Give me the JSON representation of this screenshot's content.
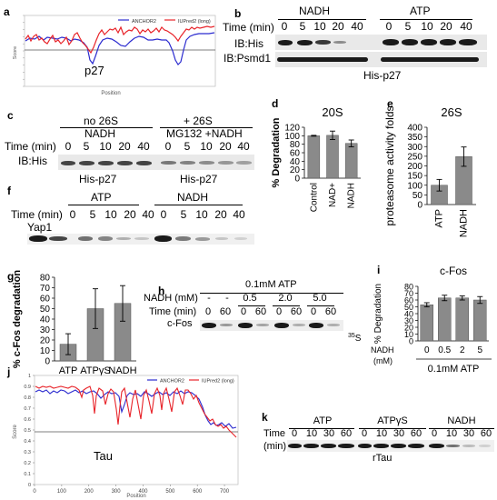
{
  "panels": {
    "a": {
      "label": "a",
      "legend": [
        "ANCHOR2",
        "IUPred2 (long)"
      ],
      "legend_colors": [
        "#2b2bcf",
        "#e8242a"
      ],
      "protein": "p27",
      "xlabel": "Position",
      "ylabel": "Score"
    },
    "b": {
      "label": "b",
      "group1": "NADH",
      "group2": "ATP",
      "time_label": "Time (min)",
      "times": [
        "0",
        "5",
        "10",
        "20",
        "40"
      ],
      "row1": "IB:His",
      "row2": "IB:Psmd1",
      "caption": "His-p27"
    },
    "c": {
      "label": "c",
      "group1_title": "no 26S",
      "group1_sub": "NADH",
      "group2_title": "+ 26S",
      "group2_sub": "MG132 +NADH",
      "time_label": "Time (min)",
      "times": [
        "0",
        "5",
        "10",
        "20",
        "40"
      ],
      "row": "IB:His",
      "caption1": "His-p27",
      "caption2": "His-p27"
    },
    "d": {
      "label": "d",
      "chart_data": {
        "type": "bar",
        "title": "20S",
        "ylabel": "% Degradation",
        "categories": [
          "Control",
          "NAD+",
          "NADH"
        ],
        "values": [
          100,
          101,
          82
        ],
        "errors": [
          1,
          10,
          8
        ],
        "ylim": [
          0,
          120
        ],
        "yticks": [
          0,
          20,
          40,
          60,
          80,
          100,
          120
        ]
      }
    },
    "e": {
      "label": "e",
      "chart_data": {
        "type": "bar",
        "title": "26S",
        "ylabel": "proteasome activity folds",
        "categories": [
          "ATP",
          "NADH"
        ],
        "values": [
          100,
          248
        ],
        "errors": [
          30,
          50
        ],
        "ylim": [
          0,
          400
        ],
        "yticks": [
          0,
          50,
          100,
          150,
          200,
          250,
          300,
          350,
          400
        ]
      }
    },
    "f": {
      "label": "f",
      "group1": "ATP",
      "group2": "NADH",
      "time_label": "Time (min)",
      "times": [
        "0",
        "5",
        "10",
        "20",
        "40"
      ],
      "row": "Yap1"
    },
    "g": {
      "label": "g",
      "chart_data": {
        "type": "bar",
        "ylabel": "% c-Fos degradation",
        "categories": [
          "ATP",
          "ATPγS",
          "NADH"
        ],
        "values": [
          16,
          50,
          55
        ],
        "errors": [
          10,
          19,
          17
        ],
        "ylim": [
          0,
          80
        ],
        "yticks": [
          0,
          10,
          20,
          30,
          40,
          50,
          60,
          70,
          80
        ]
      }
    },
    "h": {
      "label": "h",
      "atp": "0.1mM ATP",
      "nadh_label": "NADH (mM)",
      "nadh_values": [
        "-",
        "-",
        "0.5",
        "2.0",
        "5.0"
      ],
      "time_label": "Time (min)",
      "times": [
        "0",
        "60",
        "0",
        "60",
        "0",
        "60",
        "0",
        "60"
      ],
      "row": "c-Fos",
      "isotope": "35S"
    },
    "i": {
      "label": "i",
      "chart_data": {
        "type": "bar",
        "title": "c-Fos",
        "ylabel": "% Degradation",
        "xlabel_prefix": "NADH (mM)",
        "categories": [
          "0",
          "0.5",
          "2",
          "5"
        ],
        "values": [
          53,
          63,
          63,
          60
        ],
        "errors": [
          3,
          4,
          3,
          5
        ],
        "ylim": [
          0,
          80
        ],
        "yticks": [
          0,
          10,
          20,
          30,
          40,
          50,
          60,
          70,
          80
        ],
        "footer": "0.1mM ATP"
      }
    },
    "j": {
      "label": "j",
      "legend": [
        "ANCHOR2",
        "IUPred2 (long)"
      ],
      "legend_colors": [
        "#2b2bcf",
        "#e8242a"
      ],
      "protein": "Tau",
      "xlabel": "Position",
      "ylabel": "Score",
      "xticks": [
        "0",
        "100",
        "200",
        "300",
        "400",
        "500",
        "600",
        "700"
      ],
      "yticks": [
        "0",
        "0.1",
        "0.2",
        "0.3",
        "0.4",
        "0.5",
        "0.6",
        "0.7",
        "0.8",
        "0.9",
        "1"
      ]
    },
    "k": {
      "label": "k",
      "groups": [
        "ATP",
        "ATPγS",
        "NADH"
      ],
      "time_label": "Time",
      "time_unit": "(min)",
      "times": [
        "0",
        "10",
        "30",
        "60"
      ],
      "caption": "rTau"
    }
  }
}
